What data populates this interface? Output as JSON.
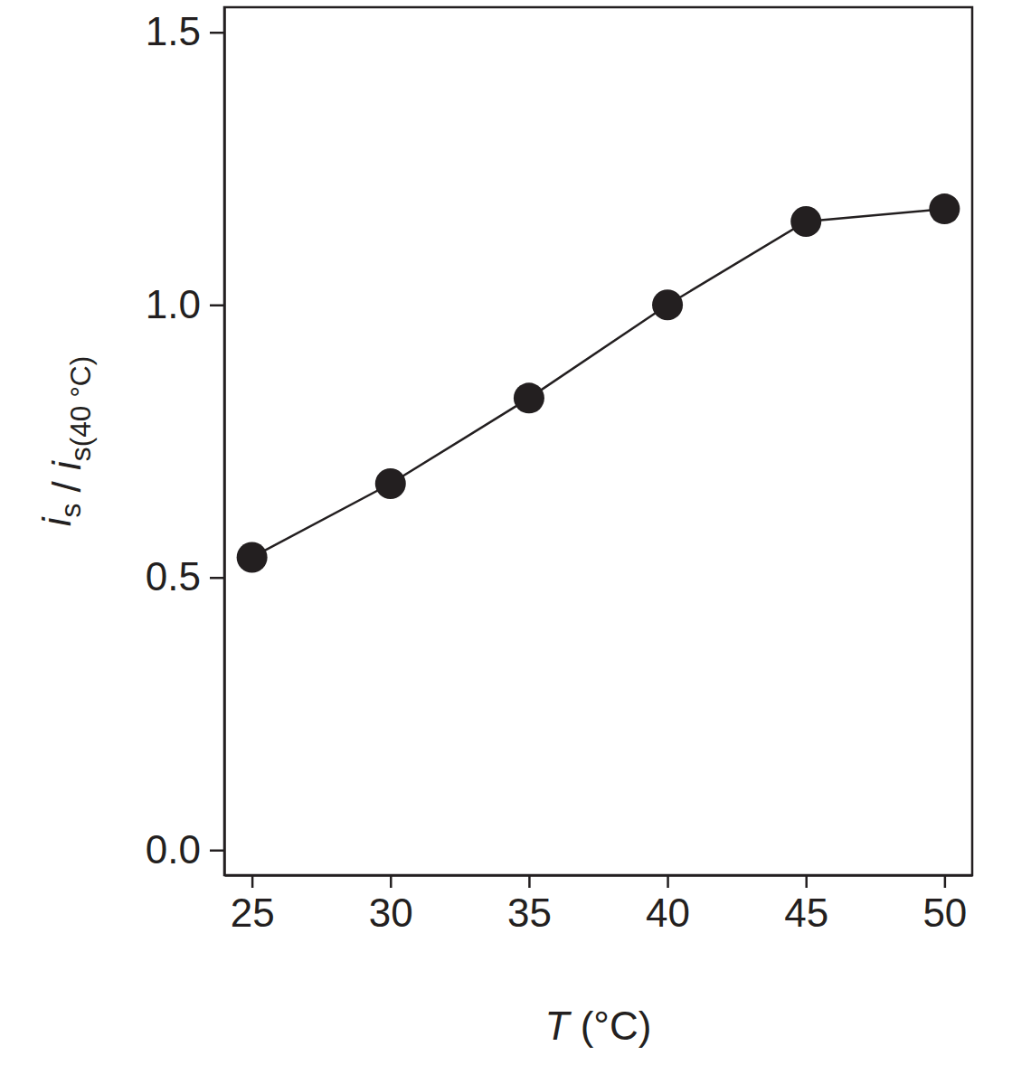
{
  "chart_data": {
    "type": "line",
    "xlabel": "T (°C)",
    "ylabel": "is / is(40 °C)",
    "x": [
      25,
      30,
      35,
      40,
      45,
      50
    ],
    "values": [
      0.537,
      0.672,
      0.829,
      1.0,
      1.153,
      1.176
    ],
    "color": "#231f20",
    "marker": "circle",
    "line_style": "solid",
    "xlim": [
      24,
      51
    ],
    "xticks": [
      25,
      30,
      35,
      40,
      45,
      50
    ],
    "ylim": [
      -0.046,
      1.546
    ],
    "yticks": [
      {
        "value": 0,
        "label": "0.0"
      },
      {
        "value": 0.5,
        "label": "0.5"
      },
      {
        "value": 1,
        "label": "1.0"
      },
      {
        "value": 1.5,
        "label": "1.5"
      }
    ],
    "grid": false
  }
}
